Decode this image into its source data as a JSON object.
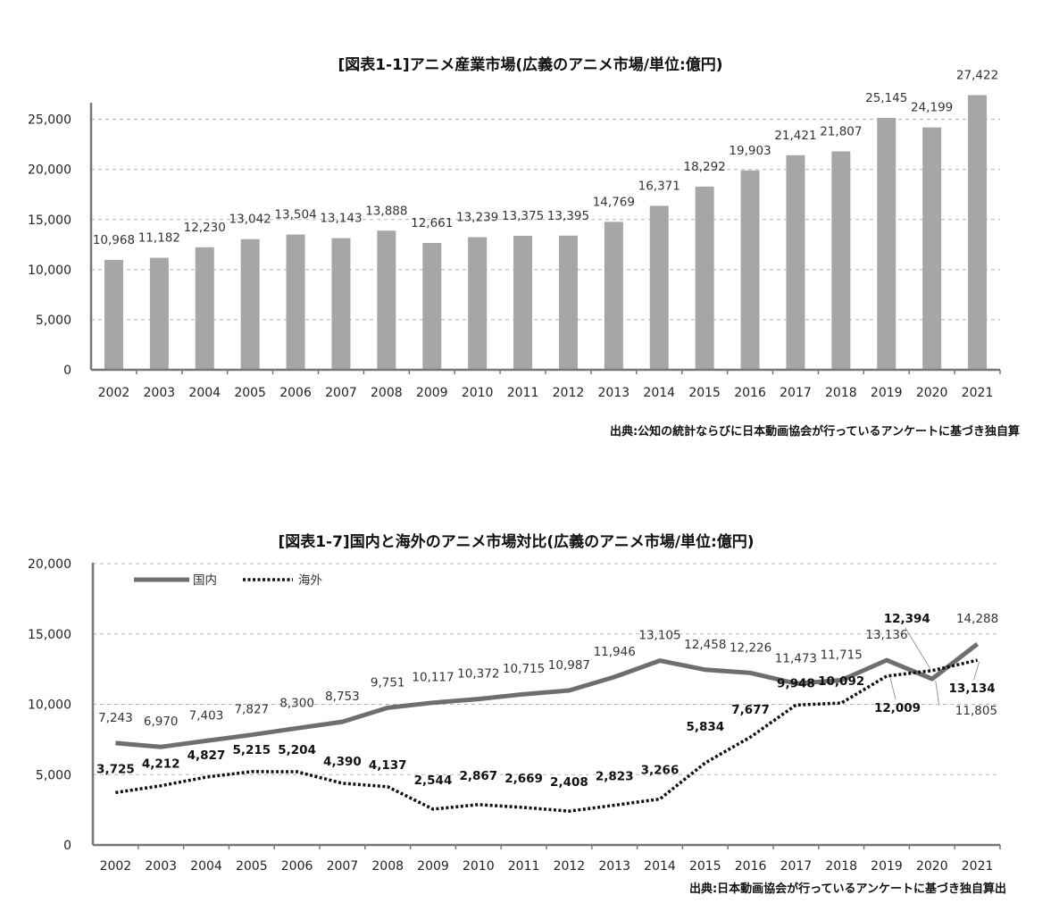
{
  "chart_data": [
    {
      "type": "bar",
      "title": "[図表1-1]アニメ産業市場(広義のアニメ市場/単位:億円)",
      "categories": [
        "2002",
        "2003",
        "2004",
        "2005",
        "2006",
        "2007",
        "2008",
        "2009",
        "2010",
        "2011",
        "2012",
        "2013",
        "2014",
        "2015",
        "2016",
        "2017",
        "2018",
        "2019",
        "2020",
        "2021"
      ],
      "values": [
        10968,
        11182,
        12230,
        13042,
        13504,
        13143,
        13888,
        12661,
        13239,
        13375,
        13395,
        14769,
        16371,
        18292,
        19903,
        21421,
        21807,
        25145,
        24199,
        27422
      ],
      "value_labels": [
        "10,968",
        "11,182",
        "12,230",
        "13,042",
        "13,504",
        "13,143",
        "13,888",
        "12,661",
        "13,239",
        "13,375",
        "13,395",
        "14,769",
        "16,371",
        "18,292",
        "19,903",
        "21,421",
        "21,807",
        "25,145",
        "24,199",
        "27,422"
      ],
      "yticks": [
        "0",
        "5,000",
        "10,000",
        "15,000",
        "20,000",
        "25,000"
      ],
      "ylim": [
        0,
        28000
      ],
      "grid": true,
      "bar_color": "#a6a6a6",
      "source": "出典:公知の統計ならびに日本動画協会が行っているアンケートに基づき独自算"
    },
    {
      "type": "line",
      "title": "[図表1-7]国内と海外のアニメ市場対比(広義のアニメ市場/単位:億円)",
      "categories": [
        "2002",
        "2003",
        "2004",
        "2005",
        "2006",
        "2007",
        "2008",
        "2009",
        "2010",
        "2011",
        "2012",
        "2013",
        "2014",
        "2015",
        "2016",
        "2017",
        "2018",
        "2019",
        "2020",
        "2021"
      ],
      "series": [
        {
          "name": "国内",
          "style": "solid",
          "color": "#6e6e6e",
          "values": [
            7243,
            6970,
            7403,
            7827,
            8300,
            8753,
            9751,
            10117,
            10372,
            10715,
            10987,
            11946,
            13105,
            12458,
            12226,
            11473,
            11715,
            13136,
            11805,
            14288
          ],
          "labels": [
            "7,243",
            "6,970",
            "7,403",
            "7,827",
            "8,300",
            "8,753",
            "9,751",
            "10,117",
            "10,372",
            "10,715",
            "10,987",
            "11,946",
            "13,105",
            "12,458",
            "12,226",
            "11,473",
            "11,715",
            "13,136",
            "11,805",
            "14,288"
          ]
        },
        {
          "name": "海外",
          "style": "dotted",
          "color": "#111111",
          "values": [
            3725,
            4212,
            4827,
            5215,
            5204,
            4390,
            4137,
            2544,
            2867,
            2669,
            2408,
            2823,
            3266,
            5834,
            7677,
            9948,
            10092,
            12009,
            12394,
            13134
          ],
          "labels": [
            "3,725",
            "4,212",
            "4,827",
            "5,215",
            "5,204",
            "4,390",
            "4,137",
            "2,544",
            "2,867",
            "2,669",
            "2,408",
            "2,823",
            "3,266",
            "5,834",
            "7,677",
            "9,948",
            "10,092",
            "12,009",
            "12,394",
            "13,134"
          ]
        }
      ],
      "yticks": [
        "0",
        "5,000",
        "10,000",
        "15,000",
        "20,000"
      ],
      "ylim": [
        0,
        20000
      ],
      "grid": true,
      "legend": "top-left",
      "source": "出典:日本動画協会が行っているアンケートに基づき独自算出"
    }
  ]
}
